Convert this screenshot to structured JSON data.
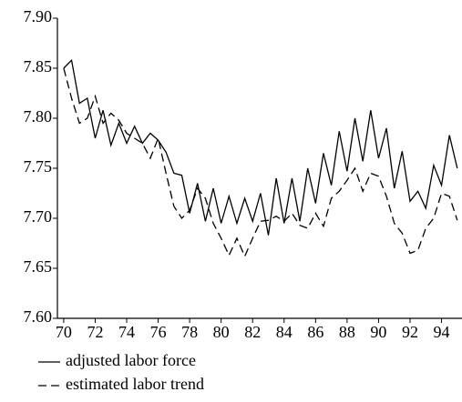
{
  "chart_data": {
    "type": "line",
    "x": [
      70,
      70.5,
      71,
      71.5,
      72,
      72.5,
      73,
      73.5,
      74,
      74.5,
      75,
      75.5,
      76,
      76.5,
      77,
      77.5,
      78,
      78.5,
      79,
      79.5,
      80,
      80.5,
      81,
      81.5,
      82,
      82.5,
      83,
      83.5,
      84,
      84.5,
      85,
      85.5,
      86,
      86.5,
      87,
      87.5,
      88,
      88.5,
      89,
      89.5,
      90,
      90.5,
      91,
      91.5,
      92,
      92.5,
      93,
      93.5,
      94,
      94.5,
      95
    ],
    "series": [
      {
        "name": "adjusted labor force",
        "color": "#000000",
        "dash": "solid",
        "values": [
          7.85,
          7.858,
          7.815,
          7.82,
          7.78,
          7.808,
          7.773,
          7.795,
          7.775,
          7.792,
          7.775,
          7.785,
          7.778,
          7.766,
          7.745,
          7.743,
          7.705,
          7.735,
          7.697,
          7.73,
          7.695,
          7.722,
          7.695,
          7.72,
          7.697,
          7.725,
          7.683,
          7.74,
          7.695,
          7.74,
          7.697,
          7.75,
          7.715,
          7.765,
          7.733,
          7.787,
          7.747,
          7.8,
          7.757,
          7.808,
          7.76,
          7.79,
          7.73,
          7.767,
          7.717,
          7.727,
          7.71,
          7.753,
          7.733,
          7.783,
          7.75
        ]
      },
      {
        "name": "estimated labor trend",
        "color": "#000000",
        "dash": "dashed",
        "values": [
          7.85,
          7.82,
          7.795,
          7.8,
          7.822,
          7.795,
          7.805,
          7.798,
          7.785,
          7.78,
          7.775,
          7.76,
          7.78,
          7.745,
          7.712,
          7.7,
          7.708,
          7.73,
          7.72,
          7.695,
          7.68,
          7.663,
          7.68,
          7.662,
          7.68,
          7.697,
          7.698,
          7.702,
          7.697,
          7.705,
          7.693,
          7.69,
          7.705,
          7.692,
          7.72,
          7.727,
          7.738,
          7.75,
          7.727,
          7.745,
          7.742,
          7.722,
          7.695,
          7.685,
          7.665,
          7.668,
          7.69,
          7.7,
          7.725,
          7.722,
          7.698
        ]
      }
    ],
    "xlim": [
      69.6,
      95.3
    ],
    "xticks": [
      70,
      72,
      74,
      76,
      78,
      80,
      82,
      84,
      86,
      88,
      90,
      92,
      94
    ],
    "ylim": [
      7.6,
      7.9
    ],
    "yticks": [
      {
        "value": 7.6,
        "label": "7.60"
      },
      7.65,
      {
        "value": 7.7,
        "label": "7.70"
      },
      7.75,
      {
        "value": 7.8,
        "label": "7.80"
      },
      7.85,
      {
        "value": 7.9,
        "label": "7.90"
      }
    ]
  }
}
